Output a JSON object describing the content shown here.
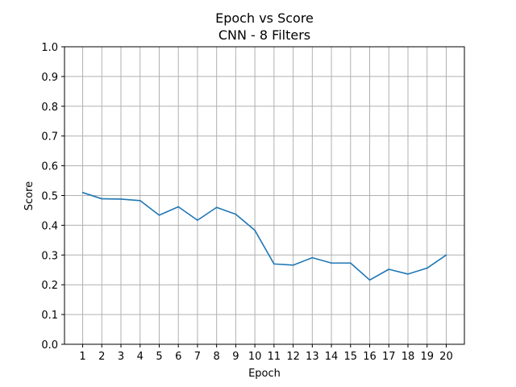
{
  "chart_data": {
    "type": "line",
    "title": "Epoch vs Score",
    "subtitle": "CNN - 8 Filters",
    "xlabel": "Epoch",
    "ylabel": "Score",
    "x": [
      1,
      2,
      3,
      4,
      5,
      6,
      7,
      8,
      9,
      10,
      11,
      12,
      13,
      14,
      15,
      16,
      17,
      18,
      19,
      20
    ],
    "series": [
      {
        "values": [
          0.51,
          0.489,
          0.488,
          0.483,
          0.434,
          0.462,
          0.417,
          0.46,
          0.437,
          0.383,
          0.27,
          0.266,
          0.291,
          0.273,
          0.273,
          0.216,
          0.252,
          0.236,
          0.256,
          0.3
        ],
        "color": "#1f77b4"
      }
    ],
    "xticks": [
      "1",
      "2",
      "3",
      "4",
      "5",
      "6",
      "7",
      "8",
      "9",
      "10",
      "11",
      "12",
      "13",
      "14",
      "15",
      "16",
      "17",
      "18",
      "19",
      "20"
    ],
    "yticks": [
      "0.0",
      "0.1",
      "0.2",
      "0.3",
      "0.4",
      "0.5",
      "0.6",
      "0.7",
      "0.8",
      "0.9",
      "1.0"
    ],
    "ylim": [
      0.0,
      1.0
    ],
    "xlim": [
      0.05,
      20.95
    ],
    "grid": true,
    "grid_color": "#b0b0b0"
  }
}
